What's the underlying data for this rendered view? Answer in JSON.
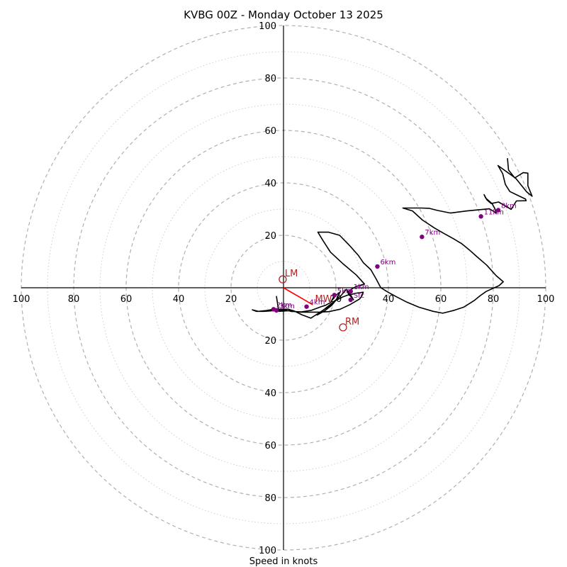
{
  "chart_data": {
    "type": "hodograph",
    "title": "KVBG 00Z - Monday October 13 2025",
    "xlabel": "Speed in knots",
    "range": [
      -100,
      100
    ],
    "ring_major_step": 20,
    "ring_minor_step": 10,
    "tick_labels": [
      "100",
      "80",
      "60",
      "40",
      "20",
      "20",
      "40",
      "60",
      "80",
      "100"
    ],
    "tick_values": [
      -100,
      -80,
      -60,
      -40,
      -20,
      20,
      40,
      60,
      80,
      100
    ],
    "colors": {
      "trace": "#000000",
      "height_marker": "#800080",
      "motion": "#b22222",
      "mean_wind_vector": "#ff0000",
      "ring": "#b0b0b0"
    },
    "trace_uv": [
      [
        -2.7,
        -3.2
      ],
      [
        -1.8,
        -9
      ],
      [
        3,
        -8.7
      ],
      [
        2.7,
        -9
      ],
      [
        6.8,
        -9.2
      ],
      [
        10.7,
        -8.6
      ],
      [
        14.4,
        -7.2
      ],
      [
        16,
        -6.7
      ],
      [
        17.3,
        -6
      ],
      [
        18,
        -5.6
      ],
      [
        19,
        -3.7
      ],
      [
        21.6,
        -1.6
      ],
      [
        20.1,
        -4.6
      ],
      [
        18.4,
        -6.7
      ],
      [
        15.7,
        -8.8
      ],
      [
        12.8,
        -10.4
      ],
      [
        17.8,
        -6.4
      ],
      [
        21.8,
        -3.1
      ],
      [
        24,
        -0.6
      ],
      [
        25.6,
        -2.7
      ],
      [
        26.7,
        -4.6
      ],
      [
        25,
        -2.6
      ],
      [
        22.4,
        -3.6
      ],
      [
        19.9,
        -4.9
      ],
      [
        16.6,
        -7.6
      ],
      [
        12.9,
        -10
      ],
      [
        10.4,
        -11.6
      ],
      [
        7,
        -10.3
      ],
      [
        4,
        -8.8
      ],
      [
        1.8,
        -8.2
      ],
      [
        -0.9,
        -8.2
      ],
      [
        -3.8,
        -8.2
      ],
      [
        -6.6,
        -8.7
      ],
      [
        -9.6,
        -9
      ],
      [
        -11.9,
        -8.4
      ],
      [
        -10.4,
        -9
      ],
      [
        -7.6,
        -9
      ],
      [
        -4.7,
        -8.8
      ],
      [
        -2.2,
        -8.6
      ],
      [
        0.7,
        -8.6
      ],
      [
        3.5,
        -9
      ],
      [
        6.5,
        -9.3
      ],
      [
        10.3,
        -9.3
      ],
      [
        13.6,
        -9.3
      ],
      [
        17.3,
        -9.1
      ],
      [
        21.6,
        -8.2
      ],
      [
        25.4,
        -6.4
      ],
      [
        29,
        -4.3
      ],
      [
        29.9,
        -3.1
      ],
      [
        30.4,
        -1.7
      ],
      [
        27.4,
        -2.1
      ],
      [
        25,
        -2.8
      ],
      [
        24.4,
        -1.5
      ],
      [
        26.5,
        -0.2
      ],
      [
        27.8,
        0.5
      ],
      [
        30.9,
        1.4
      ],
      [
        27.8,
        4.8
      ],
      [
        22.5,
        9.3
      ],
      [
        17.9,
        13.6
      ],
      [
        14.8,
        18.4
      ],
      [
        13.1,
        21.2
      ],
      [
        17.2,
        21.2
      ],
      [
        21.4,
        20
      ],
      [
        25.2,
        16.1
      ],
      [
        28.5,
        12.4
      ],
      [
        30.5,
        9.5
      ],
      [
        33.3,
        6.9
      ],
      [
        35.3,
        3.4
      ],
      [
        37.1,
        0
      ],
      [
        39.9,
        -1.7
      ],
      [
        42.6,
        -3.2
      ],
      [
        47.1,
        -5.5
      ],
      [
        51.6,
        -7.4
      ],
      [
        57.1,
        -9
      ],
      [
        60.7,
        -9.7
      ],
      [
        65.1,
        -8.6
      ],
      [
        68.7,
        -7.4
      ],
      [
        72.7,
        -4.9
      ],
      [
        74.9,
        -3.1
      ],
      [
        77.3,
        -1.4
      ],
      [
        82.2,
        0.8
      ],
      [
        83.8,
        2.3
      ],
      [
        81.1,
        4.6
      ],
      [
        77.5,
        8.6
      ],
      [
        73.7,
        11.9
      ],
      [
        70.9,
        14.4
      ],
      [
        68.1,
        16.7
      ],
      [
        64.8,
        18.7
      ],
      [
        61.2,
        20.7
      ],
      [
        57.5,
        22.8
      ],
      [
        53,
        25.8
      ],
      [
        49.2,
        29.3
      ],
      [
        45.5,
        30.4
      ],
      [
        52.5,
        30.4
      ],
      [
        55.5,
        30.3
      ],
      [
        58.7,
        29.5
      ],
      [
        63.7,
        28.5
      ],
      [
        70,
        29.3
      ],
      [
        78.5,
        30.1
      ],
      [
        81.2,
        28.5
      ],
      [
        80.6,
        30.2
      ],
      [
        79.5,
        32.1
      ],
      [
        77.1,
        34.2
      ],
      [
        76.5,
        35.5
      ],
      [
        77.6,
        33.5
      ],
      [
        79.2,
        32.1
      ],
      [
        82,
        32.7
      ],
      [
        86.8,
        29.9
      ],
      [
        88.8,
        33.1
      ],
      [
        92.5,
        33.2
      ],
      [
        92.3,
        33.8
      ],
      [
        89.6,
        35.1
      ],
      [
        86.3,
        36.7
      ],
      [
        84.6,
        39.4
      ],
      [
        83.6,
        43.5
      ],
      [
        81.8,
        46.6
      ],
      [
        88.6,
        41.7
      ],
      [
        92.7,
        36.6
      ],
      [
        94.8,
        34.9
      ],
      [
        93.2,
        38.9
      ],
      [
        93.2,
        43.7
      ],
      [
        91.4,
        43.9
      ],
      [
        88.2,
        41.9
      ],
      [
        85.8,
        44.9
      ],
      [
        85.4,
        49.4
      ]
    ],
    "height_markers": [
      {
        "label": "Sfc",
        "u": 25.6,
        "v": -4.6
      },
      {
        "label": "1km",
        "u": 25.6,
        "v": -1.4
      },
      {
        "label": "2km",
        "u": -3.8,
        "v": -8.2
      },
      {
        "label": "3km",
        "u": -2.7,
        "v": -8.6
      },
      {
        "label": "4km",
        "u": 8.8,
        "v": -7.2
      },
      {
        "label": "5km",
        "u": 19.4,
        "v": -2.8
      },
      {
        "label": "6km",
        "u": 35.8,
        "v": 8.1
      },
      {
        "label": "7km",
        "u": 52.8,
        "v": 19.4
      },
      {
        "label": "8km",
        "u": 81.9,
        "v": 29.6
      },
      {
        "label": "11km",
        "u": 75.3,
        "v": 27.2
      }
    ],
    "storm_motions": [
      {
        "label": "LM",
        "u": -0.3,
        "v": 3.2
      },
      {
        "label": "RM",
        "u": 22.7,
        "v": -15.1
      },
      {
        "label": "MW",
        "u": 11.2,
        "v": -6.5
      }
    ],
    "mean_wind_vector": {
      "from": [
        0,
        0
      ],
      "to": [
        11.2,
        -6.5
      ]
    }
  }
}
